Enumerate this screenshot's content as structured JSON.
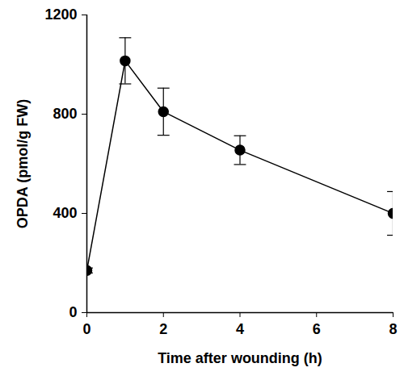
{
  "chart_data": {
    "type": "line",
    "x": [
      0,
      1,
      2,
      4,
      8
    ],
    "values": [
      170,
      1015,
      810,
      655,
      400
    ],
    "errors": [
      10,
      93,
      95,
      58,
      88
    ],
    "color": "#000000",
    "marker": "circle",
    "xlabel": "Time after wounding (h)",
    "ylabel": "OPDA (pmol/g FW)",
    "xlim": [
      0,
      8
    ],
    "ylim": [
      0,
      1200
    ],
    "xticks": [
      0,
      2,
      4,
      6,
      8
    ],
    "yticks": [
      0,
      400,
      800,
      1200
    ]
  }
}
